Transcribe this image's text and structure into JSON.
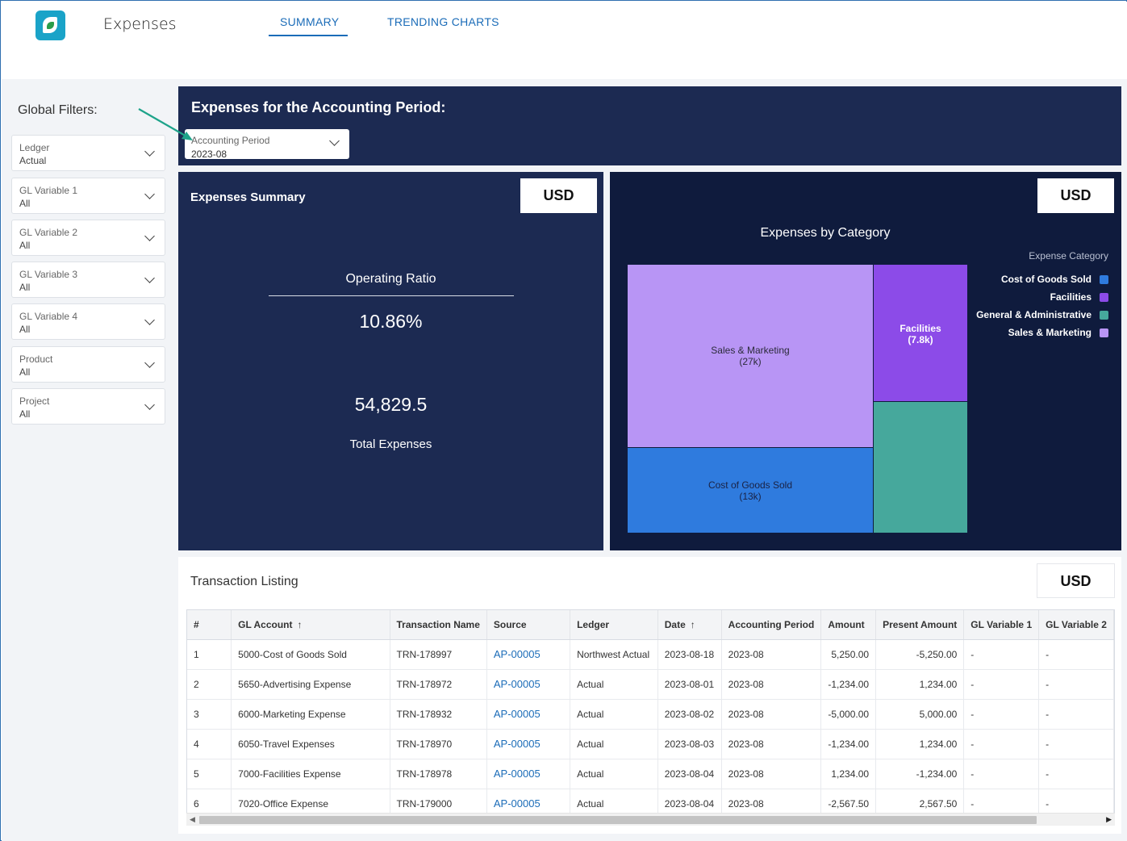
{
  "app": {
    "title": "Expenses"
  },
  "tabs": [
    {
      "label": "SUMMARY"
    },
    {
      "label": "TRENDING CHARTS"
    }
  ],
  "sidebar": {
    "title": "Global Filters:",
    "filters": [
      {
        "label": "Ledger",
        "value": "Actual"
      },
      {
        "label": "GL Variable 1",
        "value": "All"
      },
      {
        "label": "GL Variable 2",
        "value": "All"
      },
      {
        "label": "GL Variable 3",
        "value": "All"
      },
      {
        "label": "GL Variable 4",
        "value": "All"
      },
      {
        "label": "Product",
        "value": "All"
      },
      {
        "label": "Project",
        "value": "All"
      }
    ]
  },
  "period": {
    "title": "Expenses for the Accounting Period:",
    "select_label": "Accounting Period",
    "select_value": "2023-08"
  },
  "summary": {
    "title": "Expenses Summary",
    "currency": "USD",
    "operating_ratio_label": "Operating Ratio",
    "operating_ratio_value": "10.86%",
    "total_value": "54,829.5",
    "total_label": "Total Expenses"
  },
  "category": {
    "currency": "USD",
    "chart_title": "Expenses by Category",
    "legend_title": "Expense Category",
    "legend": [
      {
        "label": "Cost of Goods Sold",
        "color": "#2f7bde"
      },
      {
        "label": "Facilities",
        "color": "#8c4be8"
      },
      {
        "label": "General & Administrative",
        "color": "#46a89c"
      },
      {
        "label": "Sales & Marketing",
        "color": "#b895f5"
      }
    ],
    "tiles": {
      "sales_marketing": {
        "name": "Sales & Marketing",
        "value": "(27k)"
      },
      "facilities": {
        "name": "Facilities",
        "value": "(7.8k)"
      },
      "cogs": {
        "name": "Cost of Goods Sold",
        "value": "(13k)"
      }
    }
  },
  "chart_data": {
    "type": "treemap",
    "title": "Expenses by Category",
    "legend_title": "Expense Category",
    "categories": [
      "Sales & Marketing",
      "Cost of Goods Sold",
      "Facilities",
      "General & Administrative"
    ],
    "value_labels": [
      "27k",
      "13k",
      "7.8k",
      null
    ]
  },
  "transactions": {
    "title": "Transaction Listing",
    "currency": "USD",
    "columns": [
      "#",
      "GL Account",
      "Transaction Name",
      "Source",
      "Ledger",
      "Date",
      "Accounting Period",
      "Amount",
      "Present Amount",
      "GL Variable 1",
      "GL Variable 2"
    ],
    "sort_arrow": "↑",
    "rows": [
      [
        "1",
        "5000-Cost of Goods Sold",
        "TRN-178997",
        "AP-00005",
        "Northwest Actual",
        "2023-08-18",
        "2023-08",
        "5,250.00",
        "-5,250.00",
        "-",
        "-"
      ],
      [
        "2",
        "5650-Advertising Expense",
        "TRN-178972",
        "AP-00005",
        "Actual",
        "2023-08-01",
        "2023-08",
        "-1,234.00",
        "1,234.00",
        "-",
        "-"
      ],
      [
        "3",
        "6000-Marketing Expense",
        "TRN-178932",
        "AP-00005",
        "Actual",
        "2023-08-02",
        "2023-08",
        "-5,000.00",
        "5,000.00",
        "-",
        "-"
      ],
      [
        "4",
        "6050-Travel Expenses",
        "TRN-178970",
        "AP-00005",
        "Actual",
        "2023-08-03",
        "2023-08",
        "-1,234.00",
        "1,234.00",
        "-",
        "-"
      ],
      [
        "5",
        "7000-Facilities Expense",
        "TRN-178978",
        "AP-00005",
        "Actual",
        "2023-08-04",
        "2023-08",
        "1,234.00",
        "-1,234.00",
        "-",
        "-"
      ],
      [
        "6",
        "7020-Office Expense",
        "TRN-179000",
        "AP-00005",
        "Actual",
        "2023-08-04",
        "2023-08",
        "-2,567.50",
        "2,567.50",
        "-",
        "-"
      ]
    ]
  }
}
